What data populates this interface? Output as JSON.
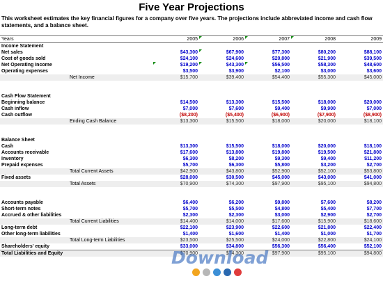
{
  "title": "Five Year Projections",
  "description": "This worksheet estimates the key financial figures for a company over five years.  The projections include abbreviated income and cash flow statements, and a balance sheet.",
  "years_label": "Years",
  "years": [
    "2005",
    "2006",
    "2007",
    "2008",
    "2009"
  ],
  "income": {
    "header": "Income Statement",
    "net_sales": {
      "label": "Net sales",
      "values": [
        "$43,300",
        "$67,900",
        "$77,300",
        "$80,200",
        "$88,100"
      ]
    },
    "cogs": {
      "label": "Cost of goods sold",
      "values": [
        "$24,100",
        "$24,600",
        "$20,800",
        "$21,900",
        "$39,500"
      ]
    },
    "net_op_income": {
      "label": "Net Operating Income",
      "values": [
        "$19,200",
        "$43,300",
        "$56,500",
        "$58,300",
        "$48,600"
      ]
    },
    "op_expenses": {
      "label": "Operating expenses",
      "values": [
        "$3,500",
        "$3,900",
        "$2,100",
        "$3,000",
        "$3,600"
      ]
    },
    "net_income": {
      "label": "Net Income",
      "values": [
        "$15,700",
        "$39,400",
        "$54,400",
        "$55,300",
        "$45,000"
      ]
    }
  },
  "cashflow": {
    "header": "Cash Flow Statement",
    "beginning": {
      "label": "Beginning balance",
      "values": [
        "$14,500",
        "$13,300",
        "$15,500",
        "$18,000",
        "$20,000"
      ]
    },
    "inflow": {
      "label": "Cash inflow",
      "values": [
        "$7,000",
        "$7,600",
        "$9,400",
        "$9,900",
        "$7,000"
      ]
    },
    "outflow": {
      "label": "Cash outflow",
      "values": [
        "($8,200)",
        "($5,400)",
        "($6,900)",
        "($7,900)",
        "($8,900)"
      ]
    },
    "ending": {
      "label": "Ending Cash Balance",
      "values": [
        "$13,300",
        "$15,500",
        "$18,000",
        "$20,000",
        "$18,100"
      ]
    }
  },
  "balance": {
    "header": "Balance Sheet",
    "cash": {
      "label": "Cash",
      "values": [
        "$13,300",
        "$15,500",
        "$18,000",
        "$20,000",
        "$18,100"
      ]
    },
    "receivable": {
      "label": "Accounts receivable",
      "values": [
        "$17,600",
        "$13,800",
        "$19,800",
        "$19,500",
        "$21,800"
      ]
    },
    "inventory": {
      "label": "Inventory",
      "values": [
        "$6,300",
        "$8,200",
        "$9,300",
        "$9,400",
        "$11,200"
      ]
    },
    "prepaid": {
      "label": "Prepaid expenses",
      "values": [
        "$5,700",
        "$6,300",
        "$5,800",
        "$3,200",
        "$2,700"
      ]
    },
    "total_current_assets": {
      "label": "Total Current Assets",
      "values": [
        "$42,900",
        "$43,800",
        "$52,900",
        "$52,100",
        "$53,800"
      ]
    },
    "fixed": {
      "label": "Fixed assets",
      "values": [
        "$28,000",
        "$30,500",
        "$45,000",
        "$43,000",
        "$41,000"
      ]
    },
    "total_assets": {
      "label": "Total Assets",
      "values": [
        "$70,900",
        "$74,300",
        "$97,900",
        "$95,100",
        "$94,800"
      ]
    },
    "payable": {
      "label": "Accounts payable",
      "values": [
        "$6,400",
        "$6,200",
        "$9,800",
        "$7,600",
        "$8,200"
      ]
    },
    "short_notes": {
      "label": "Short-term notes",
      "values": [
        "$5,700",
        "$5,500",
        "$4,800",
        "$5,400",
        "$7,700"
      ]
    },
    "accrued": {
      "label": "Accrued & other liabilities",
      "values": [
        "$2,300",
        "$2,300",
        "$3,000",
        "$2,900",
        "$2,700"
      ]
    },
    "total_current_liab": {
      "label": "Total Current Liabilities",
      "values": [
        "$14,400",
        "$14,000",
        "$17,600",
        "$15,900",
        "$18,600"
      ]
    },
    "long_debt": {
      "label": "Long-term debt",
      "values": [
        "$22,100",
        "$23,900",
        "$22,600",
        "$21,800",
        "$22,400"
      ]
    },
    "other_long": {
      "label": "Other long-term liabilities",
      "values": [
        "$1,400",
        "$1,600",
        "$1,400",
        "$1,000",
        "$1,700"
      ]
    },
    "total_long_liab": {
      "label": "Total Long-term Liabilities",
      "values": [
        "$23,500",
        "$25,500",
        "$24,000",
        "$22,800",
        "$24,100"
      ]
    },
    "equity": {
      "label": "Shareholders' equity",
      "values": [
        "$33,000",
        "$34,800",
        "$56,300",
        "$56,400",
        "$52,100"
      ]
    },
    "total_liab_equity": {
      "label": "Total Liabilities and Equity",
      "values": [
        "$70,900",
        "$74,300",
        "$97,900",
        "$95,100",
        "$94,800"
      ]
    }
  },
  "watermark": "Download",
  "watermark_dot_colors": [
    "#f2a51f",
    "#b7b7b7",
    "#3c8fd6",
    "#2a69b0",
    "#e03c3c"
  ],
  "colors": {
    "number_blue": "#0000cc",
    "negative_red": "#c00000",
    "total_shade": "#eeeeee",
    "marker_green": "#1a8f1a"
  }
}
